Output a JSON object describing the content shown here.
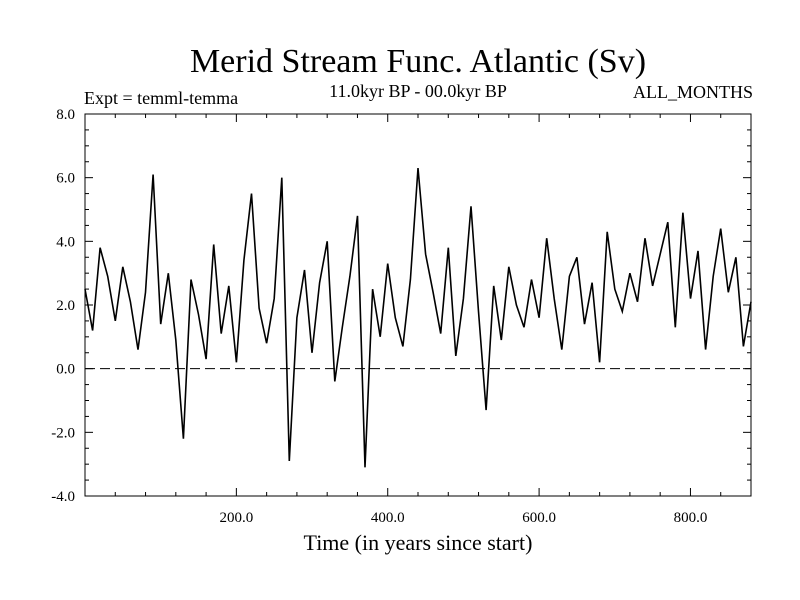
{
  "chart_data": {
    "type": "line",
    "title": "Merid Stream Func. Atlantic (Sv)",
    "subtitle_left": "Expt = temml-temma",
    "subtitle_center": "11.0kyr BP - 00.0kyr BP",
    "subtitle_right": "ALL_MONTHS",
    "xlabel": "Time (in years since start)",
    "ylabel": "",
    "xlim": [
      0,
      880
    ],
    "ylim": [
      -4,
      8
    ],
    "x_ticks": [
      200,
      400,
      600,
      800
    ],
    "x_tick_labels": [
      "200.0",
      "400.0",
      "600.0",
      "800.0"
    ],
    "y_ticks": [
      -4,
      -2,
      0,
      2,
      4,
      6,
      8
    ],
    "y_tick_labels": [
      "-4.0",
      "-2.0",
      "0.0",
      "2.0",
      "4.0",
      "6.0",
      "8.0"
    ],
    "zero_line": 0,
    "series": [
      {
        "name": "Merid Stream Func. Atlantic",
        "color": "#000000",
        "x_start": 0,
        "x_step": 10,
        "values": [
          2.5,
          1.2,
          3.8,
          2.9,
          1.5,
          3.2,
          2.1,
          0.6,
          2.4,
          6.1,
          1.4,
          3.0,
          0.9,
          -2.2,
          2.8,
          1.7,
          0.3,
          3.9,
          1.1,
          2.6,
          0.2,
          3.4,
          5.5,
          1.9,
          0.8,
          2.2,
          6.0,
          -2.9,
          1.6,
          3.1,
          0.5,
          2.7,
          4.0,
          -0.4,
          1.3,
          2.9,
          4.8,
          -3.1,
          2.5,
          1.0,
          3.3,
          1.6,
          0.7,
          2.8,
          6.3,
          3.6,
          2.4,
          1.1,
          3.8,
          0.4,
          2.2,
          5.1,
          1.8,
          -1.3,
          2.6,
          0.9,
          3.2,
          2.0,
          1.3,
          2.8,
          1.6,
          4.1,
          2.2,
          0.6,
          2.9,
          3.5,
          1.4,
          2.7,
          0.2,
          4.3,
          2.5,
          1.8,
          3.0,
          2.1,
          4.1,
          2.6,
          3.6,
          4.6,
          1.3,
          4.9,
          2.2,
          3.7,
          0.6,
          2.9,
          4.4,
          2.4,
          3.5,
          0.7,
          2.1
        ]
      }
    ]
  }
}
